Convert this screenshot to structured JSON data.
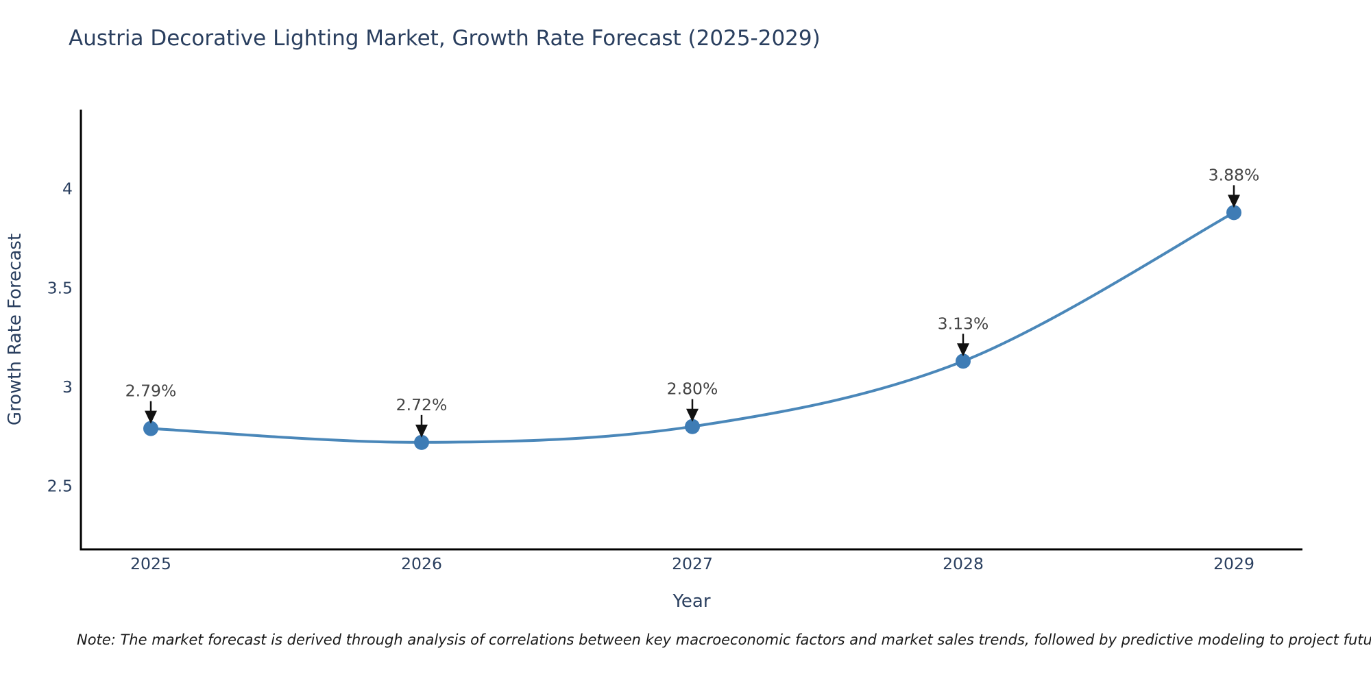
{
  "chart": {
    "title": "Austria Decorative Lighting Market, Growth Rate Forecast (2025-2029)",
    "note": "Note: The market forecast is derived through analysis of correlations between key macroeconomic factors and market sales trends, followed by predictive modeling to project future sales"
  },
  "chart_data": {
    "type": "line",
    "title": "Austria Decorative Lighting Market, Growth Rate Forecast (2025-2029)",
    "x": [
      2025,
      2026,
      2027,
      2028,
      2029
    ],
    "xtick_labels": [
      "2025",
      "2026",
      "2027",
      "2028",
      "2029"
    ],
    "series": [
      {
        "name": "Growth Rate Forecast",
        "values": [
          2.79,
          2.72,
          2.8,
          3.13,
          3.88
        ]
      }
    ],
    "point_labels": [
      "2.79%",
      "2.72%",
      "2.80%",
      "3.13%",
      "3.88%"
    ],
    "xlabel": "Year",
    "ylabel": "Growth Rate Forecast",
    "ylim": [
      2.18,
      4.4
    ],
    "yticks": [
      2.5,
      3,
      3.5,
      4
    ],
    "ytick_labels": [
      "2.5",
      "3",
      "3.5",
      "4"
    ],
    "grid": false,
    "legend_position": "none",
    "annotation_style": "value labels with down arrows above each point",
    "colors": {
      "line": "#4a87b9",
      "marker": "#3e7cb5",
      "axis": "#000000",
      "tick_text": "#2a3f5f",
      "title_text": "#2a3f5f",
      "annotation_text": "#444444",
      "arrow": "#111111",
      "background": "#ffffff"
    }
  }
}
